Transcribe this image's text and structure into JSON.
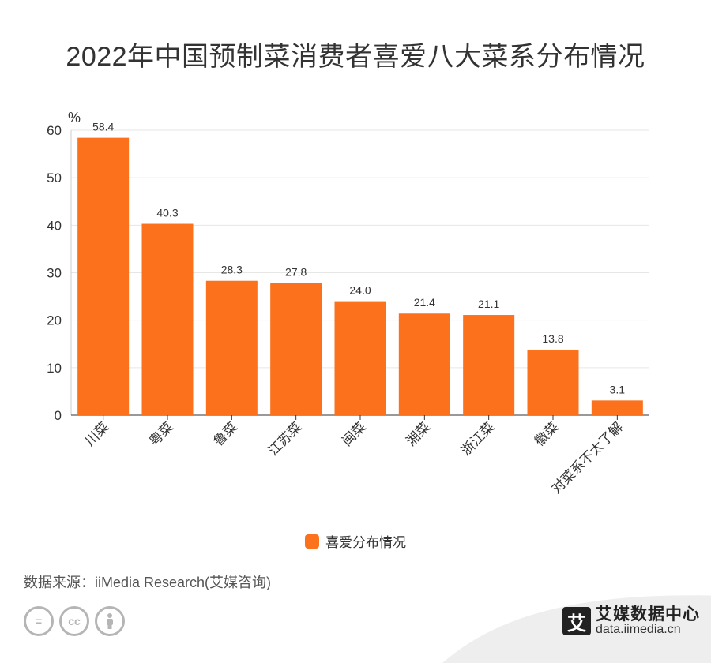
{
  "title": "2022年中国预制菜消费者喜爱八大菜系分布情况",
  "source_text": "数据来源：iiMedia Research(艾媒咨询)",
  "brand": {
    "name": "艾媒数据中心",
    "url": "data.iimedia.cn",
    "logo_char": "艾"
  },
  "cc_icons": [
    "equals-icon",
    "cc-icon",
    "person-icon"
  ],
  "colors": {
    "bar": "#fc711c",
    "grid": "#e6e6e6",
    "axis": "#333333",
    "text": "#333333"
  },
  "chart_data": {
    "type": "bar",
    "categories": [
      "川菜",
      "粤菜",
      "鲁菜",
      "江苏菜",
      "闽菜",
      "湘菜",
      "浙江菜",
      "徽菜",
      "对菜系不太了解"
    ],
    "series": [
      {
        "name": "喜爱分布情况",
        "values": [
          58.4,
          40.3,
          28.3,
          27.8,
          24.0,
          21.4,
          21.1,
          13.8,
          3.1
        ]
      }
    ],
    "value_labels": [
      "58.4",
      "40.3",
      "28.3",
      "27.8",
      "24.0",
      "21.4",
      "21.1",
      "13.8",
      "3.1"
    ],
    "y_unit": "%",
    "y_ticks": [
      0,
      10,
      20,
      30,
      40,
      50,
      60
    ],
    "ylim": [
      0,
      60
    ],
    "grid": true,
    "legend_position": "bottom"
  }
}
